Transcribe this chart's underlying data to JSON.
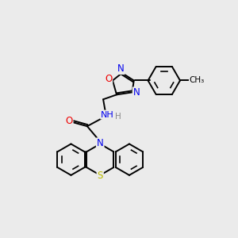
{
  "background_color": "#ebebeb",
  "atom_colors": {
    "C": "#000000",
    "N": "#0000ee",
    "O": "#ee0000",
    "S": "#bbbb00",
    "H": "#888888"
  },
  "bond_color": "#000000",
  "bond_width": 1.4,
  "figsize": [
    3.0,
    3.0
  ],
  "dpi": 100
}
